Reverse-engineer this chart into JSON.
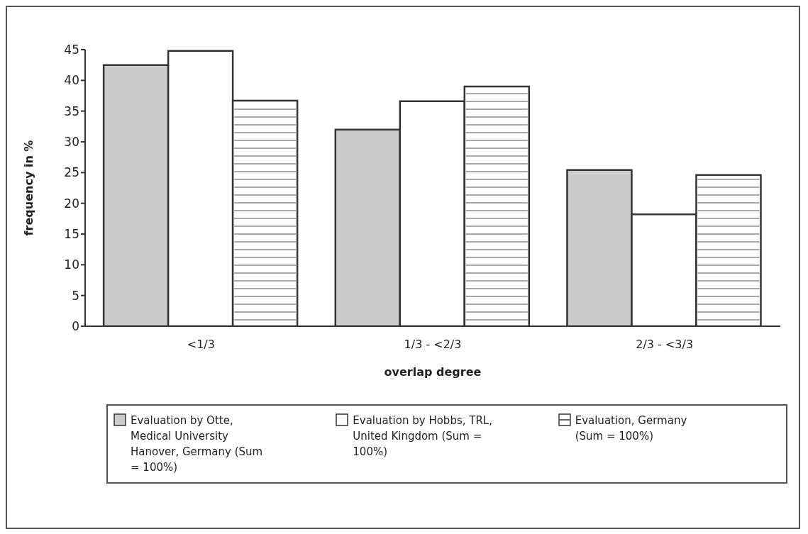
{
  "chart_data": {
    "type": "bar",
    "xlabel": "overlap degree",
    "ylabel": "frequency in %",
    "categories": [
      "<1/3",
      "1/3 - <2/3",
      "2/3 - <3/3"
    ],
    "ylim": [
      0,
      45
    ],
    "yticks": [
      0,
      5,
      10,
      15,
      20,
      25,
      30,
      35,
      40,
      45
    ],
    "grid": false,
    "legend": "bottom",
    "series": [
      {
        "name": "Evaluation by Otte, Medical University Hanover, Germany (Sum = 100%)",
        "color": "#cccccc",
        "values": [
          42.5,
          32,
          25.4
        ]
      },
      {
        "name": "Evaluation by Hobbs, TRL, United Kingdom (Sum = 100%)",
        "color": "#ffffff",
        "values": [
          44.8,
          36.6,
          18.2
        ]
      },
      {
        "name": "Evaluation, Germany (Sum = 100%)",
        "color": "#ffffff",
        "values": [
          36.7,
          39,
          24.6
        ]
      }
    ]
  }
}
